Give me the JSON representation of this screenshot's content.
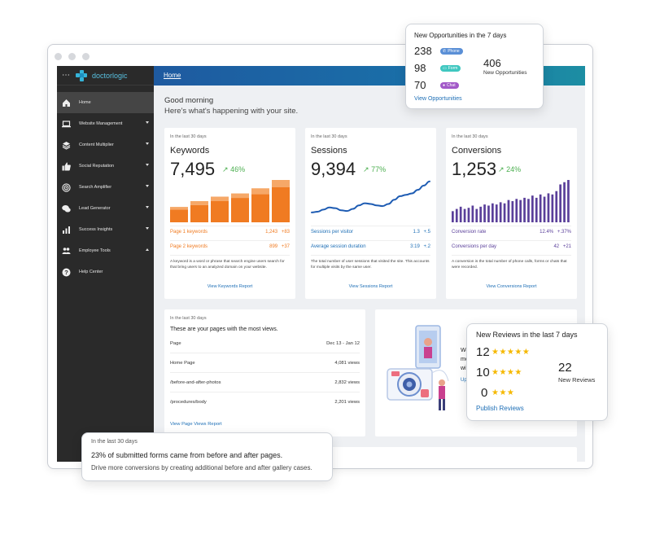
{
  "sidebar": {
    "menu_icon": "⋯",
    "logo": "doctorlogic",
    "items": [
      {
        "label": "Home",
        "icon": "home-icon"
      },
      {
        "label": "Website Management",
        "icon": "laptop-icon"
      },
      {
        "label": "Content Multiplier",
        "icon": "layers-icon"
      },
      {
        "label": "Social Reputation",
        "icon": "thumbs-up-icon"
      },
      {
        "label": "Search Amplifier",
        "icon": "target-icon"
      },
      {
        "label": "Lead Generator",
        "icon": "chat-icon"
      },
      {
        "label": "Success Insights",
        "icon": "chart-icon"
      },
      {
        "label": "Employee Tools",
        "icon": "people-icon"
      },
      {
        "label": "Help Center",
        "icon": "help-icon"
      }
    ]
  },
  "topbar": {
    "breadcrumb": "Home"
  },
  "main": {
    "greeting": "Good morning",
    "subgreeting": "Here's what's happening with your site."
  },
  "keywords": {
    "period": "In the last 30 days",
    "title": "Keywords",
    "value": "7,495",
    "delta": "46%",
    "row1_label": "Page 1 keywords",
    "row1_value": "1,243",
    "row1_delta": "+83",
    "row2_label": "Page 2 keywords",
    "row2_value": "899",
    "row2_delta": "+37",
    "description": "A keyword is a word or phrase that search engine users search for that bring users to an analyzed domain on your website.",
    "link": "View Keywords Report"
  },
  "sessions": {
    "period": "In the last 30 days",
    "title": "Sessions",
    "value": "9,394",
    "delta": "77%",
    "row1_label": "Sessions per visitor",
    "row1_value": "1.3",
    "row1_delta": "+.5",
    "row2_label": "Average session duration",
    "row2_value": "3:19",
    "row2_delta": "+.2",
    "description": "The total number of user sessions that visited the site. This accounts for multiple visits by the same user.",
    "link": "View Sessions Report"
  },
  "conversions": {
    "period": "In the last 30 days",
    "title": "Conversions",
    "value": "1,253",
    "delta": "24%",
    "row1_label": "Conversion rate",
    "row1_value": "12.4%",
    "row1_delta": "+.37%",
    "row2_label": "Conversions per day",
    "row2_value": "42",
    "row2_delta": "+21",
    "description": "A conversion is the total number of phone calls, forms or chats that were recorded.",
    "link": "View Conversions Report"
  },
  "pages": {
    "period": "In the last 30 days",
    "title": "These are your pages with the most views.",
    "col_page": "Page",
    "col_range": "Dec 13 - Jan 12",
    "rows": [
      {
        "page": "Home Page",
        "views": "4,081 views"
      },
      {
        "page": "/before-and-after-photos",
        "views": "2,832 views"
      },
      {
        "page": "/procedures/body",
        "views": "2,201 views"
      }
    ],
    "link": "View Page Views Report"
  },
  "promo": {
    "line1": "Webs",
    "line2": "more",
    "line3": "with t",
    "link": "Uploa"
  },
  "opportunities": {
    "title": "New Opportunities in the 7 days",
    "items": [
      {
        "count": "238",
        "label": "Phone",
        "color": "#5a8fd6"
      },
      {
        "count": "98",
        "label": "Form",
        "color": "#3fc7c0"
      },
      {
        "count": "70",
        "label": "Chat",
        "color": "#a259c8"
      }
    ],
    "total": "406",
    "total_label": "New Opportunities",
    "link": "View Opportunities"
  },
  "reviews": {
    "title": "New Reviews in the last 7 days",
    "items": [
      {
        "count": "12",
        "stars": "★★★★★"
      },
      {
        "count": "10",
        "stars": "★★★★"
      },
      {
        "count": "0",
        "stars": "★★★"
      }
    ],
    "total": "22",
    "total_label": "New Reviews",
    "link": "Publish Reviews"
  },
  "forms_insight": {
    "period": "In the last 30 days",
    "headline": "23% of submitted forms came from before and after pages.",
    "body": "Drive more conversions by creating additional before and after gallery cases."
  },
  "chart_data": [
    {
      "type": "bar",
      "categories": [
        "1",
        "2",
        "3",
        "4",
        "5",
        "6"
      ],
      "series": [
        {
          "values": [
            20,
            27,
            33,
            38,
            44,
            55
          ]
        },
        {
          "values": [
            4,
            6,
            7,
            7,
            9,
            11
          ]
        }
      ],
      "color": "#f07b22"
    },
    {
      "type": "line",
      "x": [
        0,
        1,
        2,
        3,
        4,
        5,
        6,
        7,
        8,
        9,
        10,
        11,
        12,
        13,
        14,
        15,
        16,
        17,
        18,
        19,
        20
      ],
      "y": [
        14,
        15,
        18,
        21,
        20,
        17,
        16,
        19,
        24,
        27,
        26,
        24,
        23,
        26,
        32,
        37,
        39,
        41,
        46,
        52,
        58
      ],
      "color": "#1e5cb3"
    },
    {
      "type": "bar",
      "categories": [
        "1",
        "2",
        "3",
        "4",
        "5",
        "6",
        "7",
        "8",
        "9",
        "10",
        "11",
        "12",
        "13",
        "14",
        "15",
        "16",
        "17",
        "18",
        "19",
        "20",
        "21",
        "22",
        "23",
        "24",
        "25",
        "26",
        "27",
        "28",
        "29",
        "30"
      ],
      "values": [
        10,
        12,
        14,
        12,
        13,
        15,
        12,
        14,
        16,
        15,
        17,
        16,
        18,
        17,
        20,
        19,
        21,
        20,
        22,
        21,
        24,
        22,
        25,
        23,
        26,
        25,
        28,
        34,
        36,
        38
      ],
      "color": "#5a3f9a"
    }
  ]
}
